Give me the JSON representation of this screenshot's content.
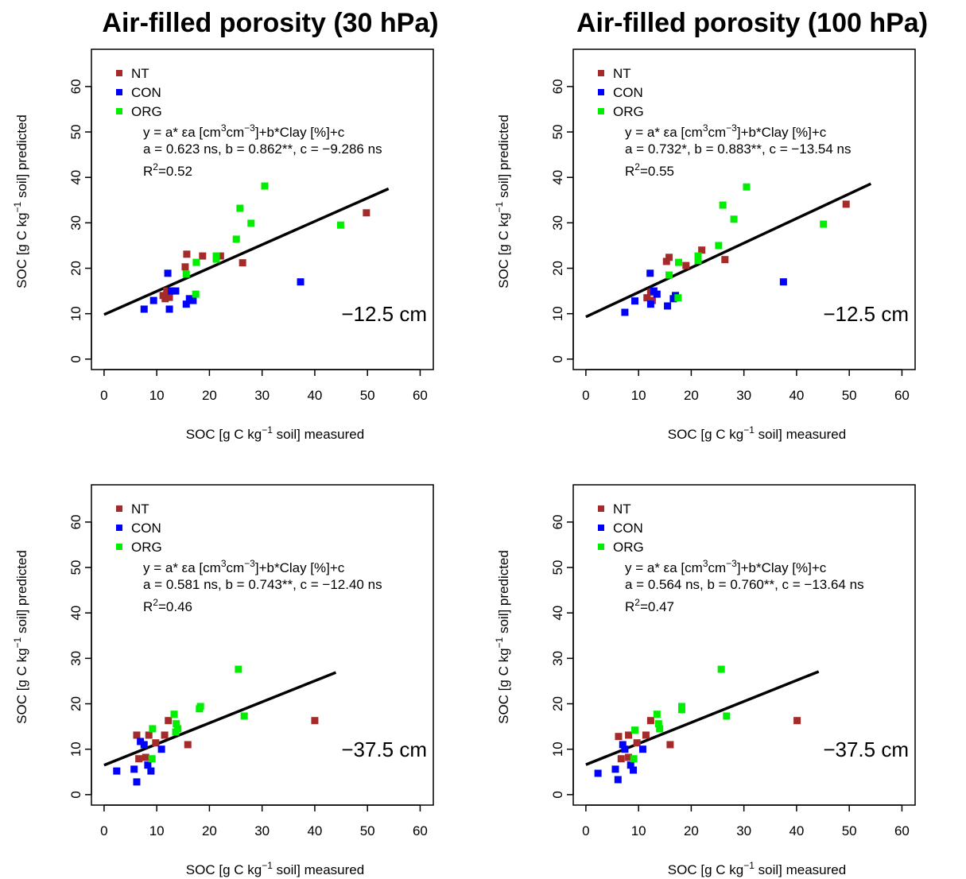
{
  "chart_data": [
    {
      "type": "scatter",
      "title": "Air-filled porosity (30 hPa)",
      "xlabel": [
        "SOC [g C kg",
        "−1",
        " soil] measured"
      ],
      "ylabel": [
        "SOC [g C kg",
        "−1",
        " soil] predicted"
      ],
      "equation": [
        "y = a* εa [cm",
        "3",
        "cm",
        "−3",
        "]+b*Clay [%]+c"
      ],
      "coefficients": "a = 0.623 ns, b = 0.862**, c = −9.286 ns",
      "r2": [
        "R",
        "2",
        "=0.52"
      ],
      "depth_label": "−12.5 cm",
      "xlim": [
        -2.4,
        62.5
      ],
      "ylim": [
        -2.3,
        68.2
      ],
      "xticks": [
        0,
        10,
        20,
        30,
        40,
        50,
        60
      ],
      "yticks": [
        0,
        10,
        20,
        30,
        40,
        50,
        60
      ],
      "series": [
        {
          "name": "NT",
          "color": "#a52a2a",
          "x": [
            49.8,
            26.3,
            22.1,
            18.7,
            15.7,
            15.4,
            11.2,
            11.6,
            12.4,
            11.9
          ],
          "values": [
            32.2,
            21.2,
            22.7,
            22.7,
            23.1,
            20.3,
            14.0,
            13.3,
            13.6,
            15.0
          ]
        },
        {
          "name": "CON",
          "color": "#0000ff",
          "x": [
            7.6,
            9.4,
            12.1,
            12.4,
            12.8,
            13.6,
            15.6,
            16.2,
            16.9,
            37.3
          ],
          "values": [
            11.0,
            12.9,
            18.9,
            11.0,
            15.0,
            15.0,
            12.1,
            13.3,
            12.9,
            17.0
          ]
        },
        {
          "name": "ORG",
          "color": "#00ee00",
          "x": [
            30.5,
            25.8,
            27.9,
            44.9,
            25.1,
            21.3,
            21.3,
            17.5,
            15.6,
            17.4
          ],
          "values": [
            38.1,
            33.2,
            29.9,
            29.5,
            26.4,
            22.7,
            22.0,
            21.3,
            18.7,
            14.3
          ]
        }
      ],
      "fit_line": {
        "x": [
          0,
          54
        ],
        "values": [
          9.8,
          37.5
        ]
      }
    },
    {
      "type": "scatter",
      "title": "Air-filled porosity (100 hPa)",
      "xlabel": [
        "SOC [g C kg",
        "−1",
        " soil] measured"
      ],
      "ylabel": [
        "SOC [g C kg",
        "−1",
        " soil] predicted"
      ],
      "equation": [
        "y = a* εa [cm",
        "3",
        "cm",
        "−3",
        "]+b*Clay [%]+c"
      ],
      "coefficients": "a = 0.732*, b = 0.883**, c = −13.54 ns",
      "r2": [
        "R",
        "2",
        "=0.55"
      ],
      "depth_label": "−12.5 cm",
      "xlim": [
        -2.4,
        62.5
      ],
      "ylim": [
        -2.3,
        68.2
      ],
      "xticks": [
        0,
        10,
        20,
        30,
        40,
        50,
        60
      ],
      "yticks": [
        0,
        10,
        20,
        30,
        40,
        50,
        60
      ],
      "series": [
        {
          "name": "NT",
          "color": "#a52a2a",
          "x": [
            49.4,
            26.4,
            22.0,
            19.0,
            15.8,
            15.3,
            11.6,
            12.3,
            12.6
          ],
          "values": [
            34.1,
            21.9,
            24.0,
            20.6,
            22.4,
            21.5,
            13.5,
            14.7,
            12.9
          ]
        },
        {
          "name": "CON",
          "color": "#0000ff",
          "x": [
            7.4,
            9.3,
            12.2,
            12.3,
            12.9,
            13.5,
            15.5,
            16.6,
            17.0,
            37.5
          ],
          "values": [
            10.3,
            12.8,
            18.9,
            12.1,
            15.0,
            14.3,
            11.7,
            13.3,
            14.0,
            17.0
          ]
        },
        {
          "name": "ORG",
          "color": "#00ee00",
          "x": [
            30.5,
            26.0,
            28.1,
            45.1,
            25.2,
            21.3,
            21.3,
            17.6,
            15.8,
            17.5
          ],
          "values": [
            37.9,
            33.9,
            30.8,
            29.7,
            25.0,
            22.7,
            21.7,
            21.3,
            18.5,
            13.5
          ]
        }
      ],
      "fit_line": {
        "x": [
          0,
          54.1
        ],
        "values": [
          9.3,
          38.6
        ]
      }
    },
    {
      "type": "scatter",
      "xlabel": [
        "SOC [g C kg",
        "−1",
        " soil] measured"
      ],
      "ylabel": [
        "SOC [g C kg",
        "−1",
        " soil] predicted"
      ],
      "equation": [
        "y = a* εa [cm",
        "3",
        "cm",
        "−3",
        "]+b*Clay [%]+c"
      ],
      "coefficients": "a = 0.581 ns, b = 0.743**, c = −12.40 ns",
      "r2": [
        "R",
        "2",
        "=0.46"
      ],
      "depth_label": "−37.5 cm",
      "xlim": [
        -2.4,
        62.5
      ],
      "ylim": [
        -2.3,
        68.2
      ],
      "xticks": [
        0,
        10,
        20,
        30,
        40,
        50,
        60
      ],
      "yticks": [
        0,
        10,
        20,
        30,
        40,
        50,
        60
      ],
      "series": [
        {
          "name": "NT",
          "color": "#a52a2a",
          "x": [
            40.0,
            15.9,
            12.2,
            11.5,
            8.5,
            6.2,
            6.6,
            7.9,
            9.8
          ],
          "values": [
            16.3,
            11.0,
            16.3,
            13.1,
            13.1,
            13.1,
            7.9,
            8.2,
            11.4
          ]
        },
        {
          "name": "CON",
          "color": "#0000ff",
          "x": [
            2.4,
            5.7,
            6.2,
            6.9,
            7.6,
            8.3,
            8.9,
            10.9
          ],
          "values": [
            5.2,
            5.6,
            2.8,
            11.7,
            11.0,
            6.5,
            5.2,
            10.0
          ]
        },
        {
          "name": "ORG",
          "color": "#00ee00",
          "x": [
            25.5,
            26.6,
            18.3,
            18.1,
            13.3,
            13.7,
            14.0,
            13.6,
            9.2,
            9.1
          ],
          "values": [
            27.6,
            17.3,
            19.4,
            18.9,
            17.7,
            15.6,
            14.5,
            13.8,
            14.5,
            7.9
          ]
        }
      ],
      "fit_line": {
        "x": [
          0,
          44
        ],
        "values": [
          6.5,
          26.9
        ]
      }
    },
    {
      "type": "scatter",
      "xlabel": [
        "SOC [g C kg",
        "−1",
        " soil] measured"
      ],
      "ylabel": [
        "SOC [g C kg",
        "−1",
        " soil] predicted"
      ],
      "equation": [
        "y = a* εa [cm",
        "3",
        "cm",
        "−3",
        "]+b*Clay [%]+c"
      ],
      "coefficients": "a = 0.564 ns, b = 0.760**, c = −13.64 ns",
      "r2": [
        "R",
        "2",
        "=0.47"
      ],
      "depth_label": "−37.5 cm",
      "xlim": [
        -2.4,
        62.5
      ],
      "ylim": [
        -2.3,
        68.2
      ],
      "xticks": [
        0,
        10,
        20,
        30,
        40,
        50,
        60
      ],
      "yticks": [
        0,
        10,
        20,
        30,
        40,
        50,
        60
      ],
      "series": [
        {
          "name": "NT",
          "color": "#a52a2a",
          "x": [
            40.1,
            16.0,
            12.3,
            11.4,
            8.1,
            6.2,
            6.7,
            8.1,
            9.7
          ],
          "values": [
            16.3,
            11.0,
            16.3,
            13.1,
            13.1,
            12.8,
            7.9,
            8.2,
            11.4
          ]
        },
        {
          "name": "CON",
          "color": "#0000ff",
          "x": [
            2.3,
            5.6,
            6.1,
            7.0,
            7.4,
            8.5,
            9.0,
            10.8
          ],
          "values": [
            4.7,
            5.6,
            3.3,
            11.0,
            10.0,
            6.5,
            5.4,
            10.0
          ]
        },
        {
          "name": "ORG",
          "color": "#00ee00",
          "x": [
            25.7,
            26.7,
            18.2,
            18.2,
            13.5,
            13.8,
            14.0,
            9.3,
            9.1
          ],
          "values": [
            27.6,
            17.3,
            19.4,
            18.7,
            17.7,
            15.6,
            14.5,
            14.2,
            7.9
          ]
        }
      ],
      "fit_line": {
        "x": [
          0,
          44.2
        ],
        "values": [
          6.6,
          27.1
        ]
      }
    }
  ]
}
